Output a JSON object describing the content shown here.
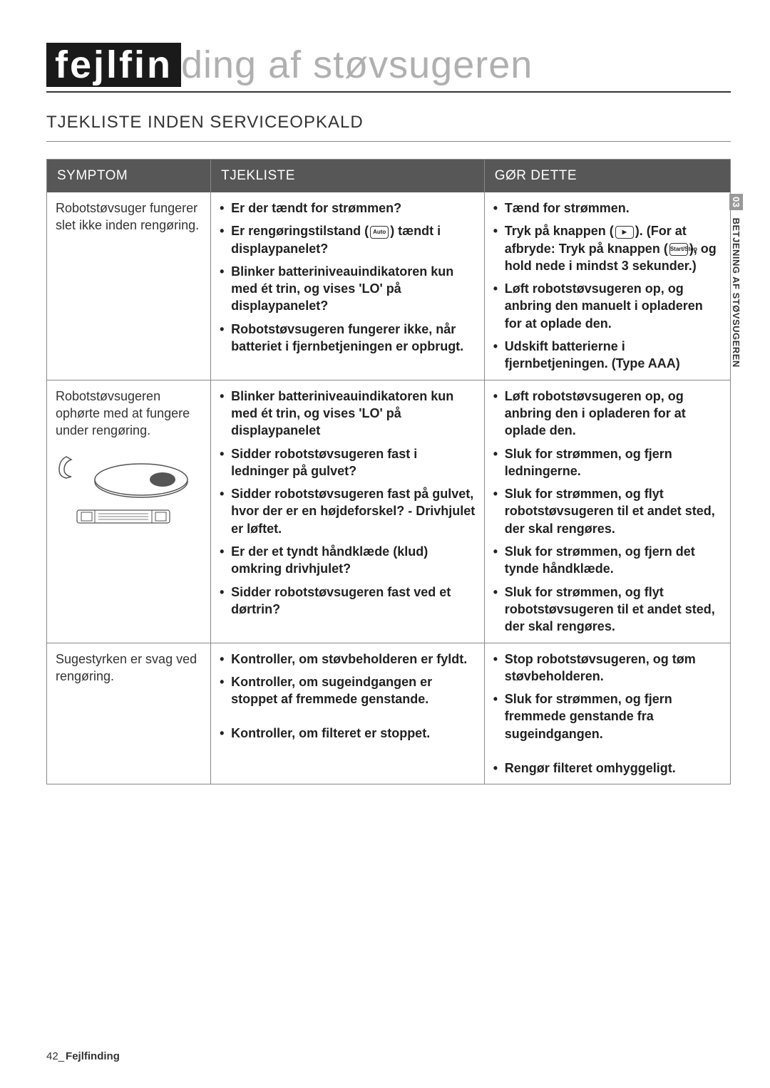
{
  "title_prefix": "fejlfin",
  "title_suffix": "ding af støvsugeren",
  "subtitle": "TJEKLISTE INDEN SERVICEOPKALD",
  "side_tab_num": "03",
  "side_tab_text": "BETJENING AF STØVSUGEREN",
  "headers": {
    "symptom": "SYMPTOM",
    "check": "TJEKLISTE",
    "action": "GØR DETTE"
  },
  "rows": [
    {
      "symptom": "Robotstøvsuger fungerer slet ikke inden rengøring.",
      "has_illustration": false,
      "items": [
        {
          "check": "Er der tændt for strømmen?",
          "action": "Tænd for strømmen."
        },
        {
          "check_pre": "Er rengøringstilstand (",
          "check_icon": "Auto",
          "check_post": ") tændt i displaypanelet?",
          "action_pre": "Tryk på knappen (",
          "action_icon1": "▶",
          "action_mid": "). (For at afbryde: Tryk på knappen (",
          "action_icon2": "Start/Stop",
          "action_post": "), og hold nede i mindst 3 sekunder.)"
        },
        {
          "check": "Blinker batteriniveauindikatoren kun med ét trin, og vises 'LO' på displaypanelet?",
          "action": "Løft robotstøvsugeren op, og anbring den manuelt i opladeren for at oplade den."
        },
        {
          "check": "Robotstøvsugeren fungerer ikke, når batteriet i fjernbetjeningen er opbrugt.",
          "action": "Udskift batterierne i fjernbetjeningen. (Type AAA)"
        }
      ]
    },
    {
      "symptom": "Robotstøvsugeren ophørte med at fungere under rengøring.",
      "has_illustration": true,
      "items": [
        {
          "check": "Blinker batteriniveauindikatoren kun med ét trin, og vises 'LO' på displaypanelet",
          "action": "Løft robotstøvsugeren op, og anbring den i opladeren for at oplade den."
        },
        {
          "check": "Sidder robotstøvsugeren fast i ledninger på gulvet?",
          "action": "Sluk for strømmen, og fjern ledningerne."
        },
        {
          "check": "Sidder robotstøvsugeren fast på gulvet, hvor der er en højdeforskel? - Drivhjulet er løftet.",
          "action": "Sluk for strømmen, og flyt robotstøvsugeren til et andet sted, der skal rengøres."
        },
        {
          "check": "Er der et tyndt håndklæde (klud) omkring drivhjulet?",
          "action": "Sluk for strømmen, og fjern det tynde håndklæde."
        },
        {
          "check": "Sidder robotstøvsugeren fast ved et dørtrin?",
          "action": "Sluk for strømmen, og flyt robotstøvsugeren til et andet sted, der skal rengøres."
        }
      ]
    },
    {
      "symptom": "Sugestyrken er svag ved rengøring.",
      "has_illustration": false,
      "items": [
        {
          "check": "Kontroller, om støvbeholderen er fyldt.",
          "action": "Stop robotstøvsugeren, og tøm støvbeholderen."
        },
        {
          "check": "Kontroller, om sugeindgangen er stoppet af fremmede genstande.",
          "action": "Sluk for strømmen, og fjern fremmede genstande fra sugeindgangen."
        },
        {
          "check": "Kontroller, om filteret er stoppet.",
          "action": "Rengør filteret omhyggeligt."
        }
      ]
    }
  ],
  "footer_num": "42_",
  "footer_label": "Fejlfinding"
}
